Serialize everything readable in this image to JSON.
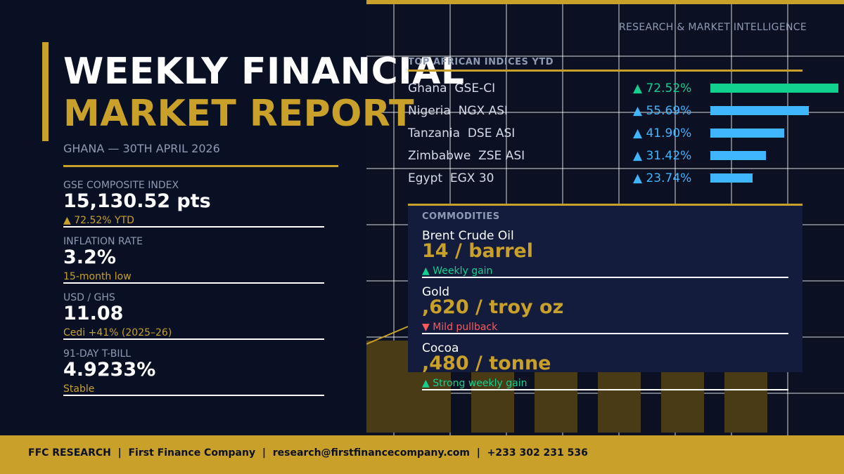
{
  "header": {
    "title_line1": "WEEKLY FINANCIAL",
    "title_line2": "MARKET REPORT",
    "subtitle": "GHANA — 30TH APRIL 2026",
    "research_label": "RESEARCH & MARKET INTELLIGENCE"
  },
  "kpis": [
    {
      "label": "GSE COMPOSITE INDEX",
      "value": "15,130.52 pts",
      "note": "▲ 72.52% YTD"
    },
    {
      "label": "INFLATION RATE",
      "value": "3.2%",
      "note": "15-month low"
    },
    {
      "label": "USD / GHS",
      "value": "11.08",
      "note": "Cedi +41% (2025–26)"
    },
    {
      "label": "91-DAY T-BILL",
      "value": "4.9233%",
      "note": "Stable"
    }
  ],
  "indices": {
    "title": "TOP AFRICAN INDICES YTD",
    "rows": [
      {
        "country": "Ghana",
        "index": "GSE-CI",
        "change": "▲ 72.52%",
        "value": 72.52,
        "color": "#12d18e"
      },
      {
        "country": "Nigeria",
        "index": "NGX ASI",
        "change": "▲ 55.69%",
        "value": 55.69,
        "color": "#3fb6ff"
      },
      {
        "country": "Tanzania",
        "index": "DSE ASI",
        "change": "▲ 41.90%",
        "value": 41.9,
        "color": "#3fb6ff"
      },
      {
        "country": "Zimbabwe",
        "index": "ZSE ASI",
        "change": "▲ 31.42%",
        "value": 31.42,
        "color": "#3fb6ff"
      },
      {
        "country": "Egypt",
        "index": "EGX 30",
        "change": "▲ 23.74%",
        "value": 23.74,
        "color": "#3fb6ff"
      }
    ]
  },
  "commodities": {
    "title": "COMMODITIES",
    "items": [
      {
        "name": "Brent Crude Oil",
        "price": "14 / barrel",
        "note": "▲ Weekly gain",
        "note_color": "#12d18e"
      },
      {
        "name": "Gold",
        "price": ",620 / troy oz",
        "note": "▼ Mild pullback",
        "note_color": "#ff5a5a"
      },
      {
        "name": "Cocoa",
        "price": ",480 / tonne",
        "note": "▲ Strong weekly gain",
        "note_color": "#12d18e"
      }
    ]
  },
  "footer": {
    "text": "FFC RESEARCH  |  First Finance Company  |  research@firstfinancecompany.com  |  +233 302 231 536"
  },
  "colors": {
    "accent": "#c9a12a",
    "background": "#0b1022",
    "card": "#131c3c",
    "positive": "#12d18e",
    "negative": "#ff5a5a",
    "bar": "#3fb6ff"
  }
}
